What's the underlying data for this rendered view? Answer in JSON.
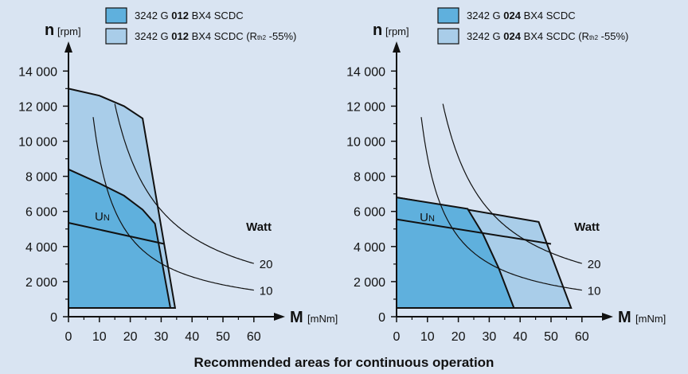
{
  "caption": "Recommended areas for continuous operation",
  "colors": {
    "background": "#d9e4f2",
    "dark_area": "#5fb0dd",
    "light_area": "#a9cde9",
    "line": "#111111"
  },
  "chart_data": [
    {
      "type": "area",
      "title": "",
      "xlabel": "M",
      "xunit": "[mNm]",
      "ylabel": "n",
      "yunit": "[rpm]",
      "xlim": [
        0,
        62
      ],
      "ylim": [
        0,
        14800
      ],
      "xticks": [
        0,
        10,
        20,
        30,
        40,
        50,
        60
      ],
      "xtick_labels": [
        "0",
        "10",
        "20",
        "30",
        "40",
        "50",
        "60"
      ],
      "yticks": [
        0,
        2000,
        4000,
        6000,
        8000,
        10000,
        12000,
        14000
      ],
      "ytick_labels": [
        "0",
        "2 000",
        "4 000",
        "6 000",
        "8 000",
        "10 000",
        "12 000",
        "14 000"
      ],
      "legend": [
        {
          "prefix": "3242 G ",
          "bold": "012",
          "suffix": " BX4 SCDC",
          "sub_pre": "",
          "sub": "",
          "sub_post": "",
          "color": "#5fb0dd"
        },
        {
          "prefix": "3242 G ",
          "bold": "012",
          "suffix": " BX4 SCDC (R",
          "sub_pre": "",
          "sub": "th2",
          "sub_post": " -55%)",
          "color": "#a9cde9"
        }
      ],
      "series": [
        {
          "name": "3242 G 012 BX4 SCDC (Rth2 -55%)",
          "points": [
            [
              0,
              13000
            ],
            [
              10,
              12600
            ],
            [
              18,
              12000
            ],
            [
              24,
              11300
            ],
            [
              34.5,
              500
            ],
            [
              0,
              500
            ]
          ]
        },
        {
          "name": "3242 G 012 BX4 SCDC",
          "points": [
            [
              0,
              8400
            ],
            [
              10,
              7600
            ],
            [
              18,
              6900
            ],
            [
              24,
              6100
            ],
            [
              28,
              5300
            ],
            [
              33,
              500
            ],
            [
              0,
              500
            ]
          ]
        }
      ],
      "un_line": {
        "label_main": "U",
        "label_sub": "N",
        "points": [
          [
            0,
            5350
          ],
          [
            31,
            4150
          ]
        ]
      },
      "watt_curves": [
        {
          "watt": 20,
          "label": "20",
          "k": 182000,
          "x_from": 15
        },
        {
          "watt": 10,
          "label": "10",
          "k": 91000,
          "x_from": 8
        }
      ],
      "watt_title": "Watt"
    },
    {
      "type": "area",
      "title": "",
      "xlabel": "M",
      "xunit": "[mNm]",
      "ylabel": "n",
      "yunit": "[rpm]",
      "xlim": [
        0,
        62
      ],
      "ylim": [
        0,
        14800
      ],
      "xticks": [
        0,
        10,
        20,
        30,
        40,
        50,
        60
      ],
      "xtick_labels": [
        "0",
        "10",
        "20",
        "30",
        "40",
        "50",
        "60"
      ],
      "yticks": [
        0,
        2000,
        4000,
        6000,
        8000,
        10000,
        12000,
        14000
      ],
      "ytick_labels": [
        "0",
        "2 000",
        "4 000",
        "6 000",
        "8 000",
        "10 000",
        "12 000",
        "14 000"
      ],
      "legend": [
        {
          "prefix": "3242 G ",
          "bold": "024",
          "suffix": " BX4 SCDC",
          "sub_pre": "",
          "sub": "",
          "sub_post": "",
          "color": "#5fb0dd"
        },
        {
          "prefix": "3242 G ",
          "bold": "024",
          "suffix": " BX4 SCDC (R",
          "sub_pre": "",
          "sub": "th2",
          "sub_post": " -55%)",
          "color": "#a9cde9"
        }
      ],
      "series": [
        {
          "name": "3242 G 024 BX4 SCDC (Rth2 -55%)",
          "points": [
            [
              0,
              6800
            ],
            [
              46,
              5400
            ],
            [
              56.5,
              500
            ],
            [
              0,
              500
            ]
          ]
        },
        {
          "name": "3242 G 024 BX4 SCDC",
          "points": [
            [
              0,
              6800
            ],
            [
              23,
              6150
            ],
            [
              28,
              4700
            ],
            [
              33,
              2800
            ],
            [
              38,
              500
            ],
            [
              0,
              500
            ]
          ]
        }
      ],
      "un_line": {
        "label_main": "U",
        "label_sub": "N",
        "points": [
          [
            0,
            5550
          ],
          [
            50,
            4150
          ]
        ]
      },
      "watt_curves": [
        {
          "watt": 20,
          "label": "20",
          "k": 182000,
          "x_from": 15
        },
        {
          "watt": 10,
          "label": "10",
          "k": 91000,
          "x_from": 8
        }
      ],
      "watt_title": "Watt"
    }
  ]
}
